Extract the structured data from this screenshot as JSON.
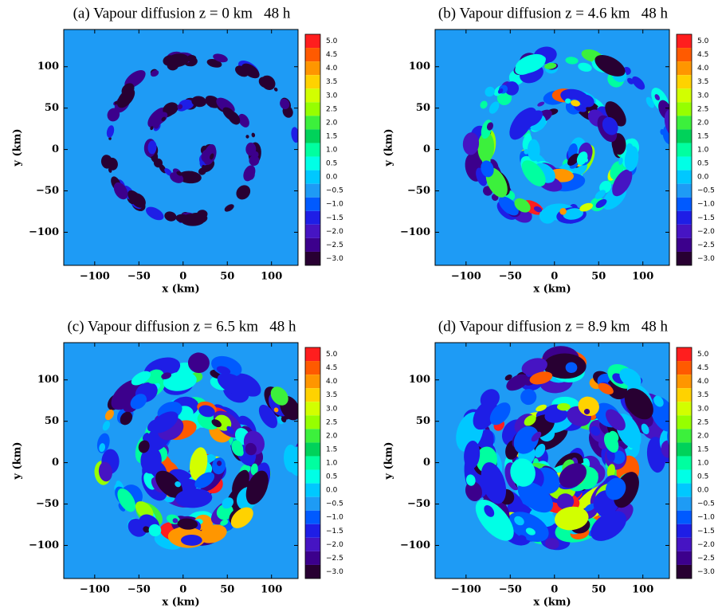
{
  "chart_data": [
    {
      "type": "contour",
      "title": "(a) Vapour diffusion z = 0 km   48 h",
      "xlabel": "x (km)",
      "ylabel": "y (km)",
      "xlim": [
        -135,
        130
      ],
      "ylim": [
        -140,
        145
      ],
      "xticks": [
        {
          "value": -100,
          "label": "−100"
        },
        {
          "value": -50,
          "label": "−50"
        },
        0,
        50,
        100
      ],
      "yticks": [
        {
          "value": -100,
          "label": "−100"
        },
        {
          "value": -50,
          "label": "−50"
        },
        0,
        50,
        100
      ],
      "levels": [
        {
          "value": 5,
          "label": "5.0"
        },
        {
          "value": 4.5,
          "label": "4.5"
        },
        {
          "value": 4,
          "label": "4.0"
        },
        {
          "value": 3.5,
          "label": "3.5"
        },
        {
          "value": 3,
          "label": "3.0"
        },
        {
          "value": 2.5,
          "label": "2.5"
        },
        {
          "value": 2,
          "label": "2.0"
        },
        {
          "value": 1.5,
          "label": "1.5"
        },
        {
          "value": 1,
          "label": "1.0"
        },
        {
          "value": 0.5,
          "label": "0.5"
        },
        {
          "value": 0,
          "label": "0.0"
        },
        {
          "value": -0.5,
          "label": "−0.5"
        },
        {
          "value": -1,
          "label": "−1.0"
        },
        {
          "value": -1.5,
          "label": "−1.5"
        },
        {
          "value": -2,
          "label": "−2.0"
        },
        {
          "value": -2.5,
          "label": "−2.5"
        },
        {
          "value": -3,
          "label": "−3.0"
        }
      ],
      "colors": [
        "#ff1e1e",
        "#ff5a00",
        "#ff9600",
        "#ffd200",
        "#d2ff00",
        "#96ff00",
        "#3cf03c",
        "#00d25a",
        "#00ffa0",
        "#00ffe6",
        "#00c8ff",
        "#1e9bf5",
        "#005aff",
        "#1e1ee6",
        "#4614c3",
        "#3c008c",
        "#280032"
      ]
    },
    {
      "type": "contour",
      "title": "(b) Vapour diffusion z = 4.6 km   48 h",
      "xlabel": "x (km)",
      "ylabel": "y (km)",
      "xlim": [
        -135,
        130
      ],
      "ylim": [
        -140,
        145
      ],
      "xticks": [
        {
          "value": -100,
          "label": "−100"
        },
        {
          "value": -50,
          "label": "−50"
        },
        0,
        50,
        100
      ],
      "yticks": [
        {
          "value": -100,
          "label": "−100"
        },
        {
          "value": -50,
          "label": "−50"
        },
        0,
        50,
        100
      ],
      "levels": [
        {
          "value": 5,
          "label": "5.0"
        },
        {
          "value": 4.5,
          "label": "4.5"
        },
        {
          "value": 4,
          "label": "4.0"
        },
        {
          "value": 3.5,
          "label": "3.5"
        },
        {
          "value": 3,
          "label": "3.0"
        },
        {
          "value": 2.5,
          "label": "2.5"
        },
        {
          "value": 2,
          "label": "2.0"
        },
        {
          "value": 1.5,
          "label": "1.5"
        },
        {
          "value": 1,
          "label": "1.0"
        },
        {
          "value": 0.5,
          "label": "0.5"
        },
        {
          "value": 0,
          "label": "0.0"
        },
        {
          "value": -0.5,
          "label": "−0.5"
        },
        {
          "value": -1,
          "label": "−1.0"
        },
        {
          "value": -1.5,
          "label": "−1.5"
        },
        {
          "value": -2,
          "label": "−2.0"
        },
        {
          "value": -2.5,
          "label": "−2.5"
        },
        {
          "value": -3,
          "label": "−3.0"
        }
      ],
      "colors": [
        "#ff1e1e",
        "#ff5a00",
        "#ff9600",
        "#ffd200",
        "#d2ff00",
        "#96ff00",
        "#3cf03c",
        "#00d25a",
        "#00ffa0",
        "#00ffe6",
        "#00c8ff",
        "#1e9bf5",
        "#005aff",
        "#1e1ee6",
        "#4614c3",
        "#3c008c",
        "#280032"
      ]
    },
    {
      "type": "contour",
      "title": "(c) Vapour diffusion z = 6.5 km   48 h",
      "xlabel": "x (km)",
      "ylabel": "y (km)",
      "xlim": [
        -135,
        130
      ],
      "ylim": [
        -140,
        145
      ],
      "xticks": [
        {
          "value": -100,
          "label": "−100"
        },
        {
          "value": -50,
          "label": "−50"
        },
        0,
        50,
        100
      ],
      "yticks": [
        {
          "value": -100,
          "label": "−100"
        },
        {
          "value": -50,
          "label": "−50"
        },
        0,
        50,
        100
      ],
      "levels": [
        {
          "value": 5,
          "label": "5.0"
        },
        {
          "value": 4.5,
          "label": "4.5"
        },
        {
          "value": 4,
          "label": "4.0"
        },
        {
          "value": 3.5,
          "label": "3.5"
        },
        {
          "value": 3,
          "label": "3.0"
        },
        {
          "value": 2.5,
          "label": "2.5"
        },
        {
          "value": 2,
          "label": "2.0"
        },
        {
          "value": 1.5,
          "label": "1.5"
        },
        {
          "value": 1,
          "label": "1.0"
        },
        {
          "value": 0.5,
          "label": "0.5"
        },
        {
          "value": 0,
          "label": "0.0"
        },
        {
          "value": -0.5,
          "label": "−0.5"
        },
        {
          "value": -1,
          "label": "−1.0"
        },
        {
          "value": -1.5,
          "label": "−1.5"
        },
        {
          "value": -2,
          "label": "−2.0"
        },
        {
          "value": -2.5,
          "label": "−2.5"
        },
        {
          "value": -3,
          "label": "−3.0"
        }
      ],
      "colors": [
        "#ff1e1e",
        "#ff5a00",
        "#ff9600",
        "#ffd200",
        "#d2ff00",
        "#96ff00",
        "#3cf03c",
        "#00d25a",
        "#00ffa0",
        "#00ffe6",
        "#00c8ff",
        "#1e9bf5",
        "#005aff",
        "#1e1ee6",
        "#4614c3",
        "#3c008c",
        "#280032"
      ]
    },
    {
      "type": "contour",
      "title": "(d) Vapour diffusion z = 8.9 km   48 h",
      "xlabel": "x (km)",
      "ylabel": "y (km)",
      "xlim": [
        -135,
        130
      ],
      "ylim": [
        -140,
        145
      ],
      "xticks": [
        {
          "value": -100,
          "label": "−100"
        },
        {
          "value": -50,
          "label": "−50"
        },
        0,
        50,
        100
      ],
      "yticks": [
        {
          "value": -100,
          "label": "−100"
        },
        {
          "value": -50,
          "label": "−50"
        },
        0,
        50,
        100
      ],
      "levels": [
        {
          "value": 5,
          "label": "5.0"
        },
        {
          "value": 4.5,
          "label": "4.5"
        },
        {
          "value": 4,
          "label": "4.0"
        },
        {
          "value": 3.5,
          "label": "3.5"
        },
        {
          "value": 3,
          "label": "3.0"
        },
        {
          "value": 2.5,
          "label": "2.5"
        },
        {
          "value": 2,
          "label": "2.0"
        },
        {
          "value": 1.5,
          "label": "1.5"
        },
        {
          "value": 1,
          "label": "1.0"
        },
        {
          "value": 0.5,
          "label": "0.5"
        },
        {
          "value": 0,
          "label": "0.0"
        },
        {
          "value": -0.5,
          "label": "−0.5"
        },
        {
          "value": -1,
          "label": "−1.0"
        },
        {
          "value": -1.5,
          "label": "−1.5"
        },
        {
          "value": -2,
          "label": "−2.0"
        },
        {
          "value": -2.5,
          "label": "−2.5"
        },
        {
          "value": -3,
          "label": "−3.0"
        }
      ],
      "colors": [
        "#ff1e1e",
        "#ff5a00",
        "#ff9600",
        "#ffd200",
        "#d2ff00",
        "#96ff00",
        "#3cf03c",
        "#00d25a",
        "#00ffa0",
        "#00ffe6",
        "#00c8ff",
        "#1e9bf5",
        "#005aff",
        "#1e1ee6",
        "#4614c3",
        "#3c008c",
        "#280032"
      ]
    }
  ]
}
